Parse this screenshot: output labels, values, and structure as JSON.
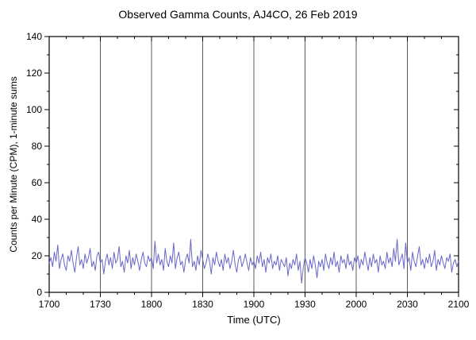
{
  "chart_data": {
    "type": "line",
    "title": "Observed Gamma Counts, AJ4CO, 26 Feb 2019",
    "xlabel": "Time (UTC)",
    "ylabel": "Counts per Minute (CPM), 1-minute sums",
    "x_tick_labels": [
      "1700",
      "1730",
      "1800",
      "1830",
      "1900",
      "1930",
      "2000",
      "2030",
      "2100"
    ],
    "x_major_interval_min": 30,
    "x_minor_interval_min": 10,
    "x_range_minutes": [
      0,
      240
    ],
    "y_ticks": [
      0,
      20,
      40,
      60,
      80,
      100,
      120,
      140
    ],
    "y_major_interval": 20,
    "y_minor_interval": 10,
    "ylim": [
      0,
      140
    ],
    "grid": "vertical-only",
    "legend": "none",
    "series_name": "1-minute gamma count sums (CPM)",
    "line_color": "#6666cc",
    "values": [
      16,
      19,
      14,
      22,
      17,
      26,
      13,
      18,
      21,
      15,
      12,
      20,
      17,
      23,
      16,
      11,
      19,
      25,
      15,
      18,
      13,
      21,
      16,
      19,
      24,
      14,
      17,
      12,
      20,
      22,
      16,
      18,
      10,
      17,
      21,
      15,
      19,
      13,
      22,
      16,
      18,
      25,
      14,
      17,
      11,
      20,
      16,
      23,
      13,
      19,
      15,
      21,
      17,
      12,
      18,
      22,
      16,
      14,
      20,
      17,
      19,
      13,
      28,
      16,
      21,
      15,
      18,
      12,
      24,
      17,
      14,
      20,
      16,
      27,
      13,
      19,
      22,
      15,
      17,
      11,
      18,
      21,
      16,
      29,
      14,
      17,
      12,
      20,
      15,
      23,
      18,
      13,
      16,
      21,
      17,
      10,
      19,
      15,
      22,
      17,
      14,
      18,
      12,
      21,
      16,
      19,
      13,
      17,
      23,
      15,
      11,
      18,
      20,
      14,
      17,
      21,
      16,
      12,
      19,
      15,
      17,
      13,
      20,
      16,
      22,
      14,
      18,
      11,
      19,
      16,
      21,
      13,
      17,
      15,
      20,
      12,
      18,
      16,
      14,
      19,
      9,
      16,
      13,
      18,
      15,
      21,
      12,
      17,
      5,
      14,
      19,
      16,
      11,
      18,
      13,
      20,
      15,
      8,
      17,
      14,
      18,
      12,
      21,
      16,
      13,
      19,
      15,
      22,
      14,
      17,
      11,
      20,
      16,
      18,
      13,
      21,
      15,
      17,
      12,
      19,
      16,
      20,
      13,
      18,
      15,
      22,
      17,
      12,
      19,
      14,
      21,
      16,
      18,
      11,
      20,
      15,
      17,
      13,
      22,
      16,
      19,
      14,
      24,
      17,
      29,
      15,
      18,
      21,
      13,
      27,
      16,
      19,
      12,
      22,
      17,
      14,
      20,
      25,
      15,
      18,
      13,
      19,
      16,
      21,
      14,
      17,
      23,
      12,
      18,
      15,
      20,
      16,
      13,
      19,
      17,
      21,
      11,
      16,
      18,
      14,
      17
    ]
  }
}
